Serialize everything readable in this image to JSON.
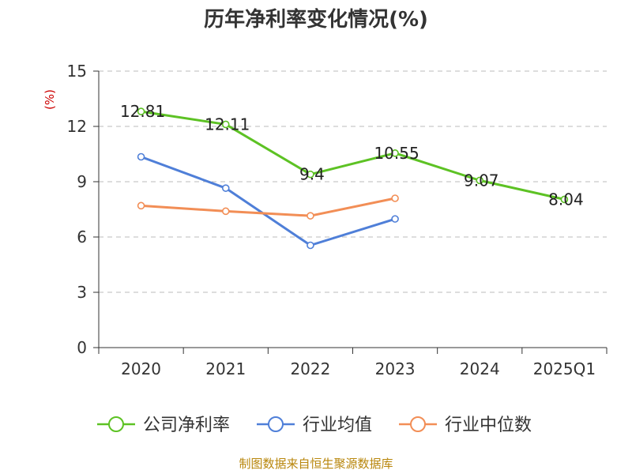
{
  "chart_data": {
    "type": "line",
    "title": "历年净利率变化情况(%)",
    "ylabel": "(%)",
    "xlabel": "",
    "categories": [
      "2020",
      "2021",
      "2022",
      "2023",
      "2024",
      "2025Q1"
    ],
    "ylim": [
      0,
      15
    ],
    "yticks": [
      0,
      3,
      6,
      9,
      12,
      15
    ],
    "grid": "horizontal-dashed",
    "legend_position": "bottom",
    "series": [
      {
        "name": "公司净利率",
        "color": "#5dc224",
        "values": [
          12.81,
          12.11,
          9.4,
          10.55,
          9.07,
          8.04
        ],
        "labels": [
          "12.81",
          "12.11",
          "9.4",
          "10.55",
          "9.07",
          "8.04"
        ],
        "show_labels": true
      },
      {
        "name": "行业均值",
        "color": "#4f7fd8",
        "values": [
          10.35,
          8.65,
          5.55,
          6.98,
          null,
          null
        ],
        "show_labels": false
      },
      {
        "name": "行业中位数",
        "color": "#f28e56",
        "values": [
          7.7,
          7.4,
          7.15,
          8.1,
          null,
          null
        ],
        "show_labels": false
      }
    ]
  },
  "footer": {
    "source": "制图数据来自恒生聚源数据库"
  }
}
